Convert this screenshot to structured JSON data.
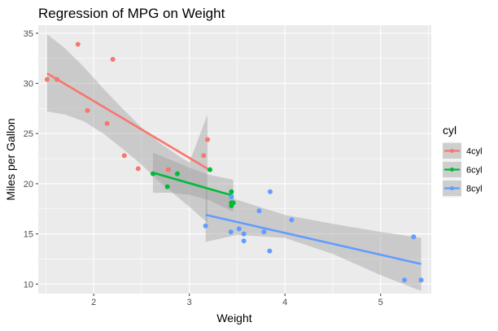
{
  "chart_data": {
    "type": "scatter",
    "title": "Regression of MPG on Weight",
    "xlabel": "Weight",
    "ylabel": "Miles per Gallon",
    "xlim": [
      1.42,
      5.53
    ],
    "ylim": [
      9.05,
      35.8
    ],
    "x_ticks": [
      2,
      3,
      4,
      5
    ],
    "y_ticks": [
      10,
      15,
      20,
      25,
      30,
      35
    ],
    "grid": true,
    "legend": {
      "title": "cyl",
      "position": "right"
    },
    "series": [
      {
        "name": "4cyl",
        "color": "#F8766D",
        "points": [
          [
            2.32,
            22.8
          ],
          [
            3.19,
            24.4
          ],
          [
            3.15,
            22.8
          ],
          [
            2.2,
            32.4
          ],
          [
            1.615,
            30.4
          ],
          [
            1.835,
            33.9
          ],
          [
            2.465,
            21.5
          ],
          [
            1.935,
            27.3
          ],
          [
            2.14,
            26.0
          ],
          [
            1.513,
            30.4
          ],
          [
            2.78,
            21.4
          ]
        ],
        "fit": {
          "x": [
            1.513,
            3.19
          ],
          "y": [
            31.0,
            21.5
          ]
        },
        "band": {
          "x": [
            1.513,
            1.7,
            1.9,
            2.1,
            2.3,
            2.5,
            2.7,
            2.9,
            3.0,
            3.19
          ],
          "lower": [
            27.2,
            26.9,
            26.2,
            25.0,
            23.5,
            21.9,
            20.1,
            18.5,
            17.7,
            16.1
          ],
          "upper": [
            34.9,
            33.5,
            31.6,
            29.5,
            27.5,
            25.6,
            24.0,
            22.7,
            22.1,
            26.9
          ]
        }
      },
      {
        "name": "6cyl",
        "color": "#00BA38",
        "points": [
          [
            2.62,
            21.0
          ],
          [
            2.875,
            21.0
          ],
          [
            3.215,
            21.4
          ],
          [
            3.44,
            18.1
          ],
          [
            3.46,
            18.1
          ],
          [
            3.44,
            19.2
          ],
          [
            3.44,
            17.8
          ],
          [
            2.77,
            19.7
          ]
        ],
        "fit": {
          "x": [
            2.62,
            3.46
          ],
          "y": [
            21.1,
            18.8
          ]
        },
        "band": {
          "x": [
            2.62,
            2.8,
            3.0,
            3.2,
            3.46
          ],
          "lower": [
            19.1,
            19.1,
            18.9,
            18.4,
            17.2
          ],
          "upper": [
            23.1,
            22.4,
            21.6,
            20.9,
            20.4
          ]
        }
      },
      {
        "name": "8cyl",
        "color": "#619CFF",
        "points": [
          [
            3.44,
            18.7
          ],
          [
            3.57,
            14.3
          ],
          [
            4.07,
            16.4
          ],
          [
            3.73,
            17.3
          ],
          [
            3.78,
            15.2
          ],
          [
            5.25,
            10.4
          ],
          [
            5.424,
            10.4
          ],
          [
            5.345,
            14.7
          ],
          [
            3.52,
            15.5
          ],
          [
            3.435,
            15.2
          ],
          [
            3.84,
            13.3
          ],
          [
            3.845,
            19.2
          ],
          [
            3.17,
            15.8
          ],
          [
            3.57,
            15.0
          ]
        ],
        "fit": {
          "x": [
            3.17,
            5.424
          ],
          "y": [
            16.9,
            12.0
          ]
        },
        "band": {
          "x": [
            3.17,
            3.5,
            4.0,
            4.5,
            5.0,
            5.424
          ],
          "lower": [
            14.2,
            14.9,
            14.6,
            13.0,
            10.9,
            9.3
          ],
          "upper": [
            19.6,
            18.4,
            16.9,
            16.0,
            15.2,
            14.6
          ]
        }
      }
    ]
  }
}
